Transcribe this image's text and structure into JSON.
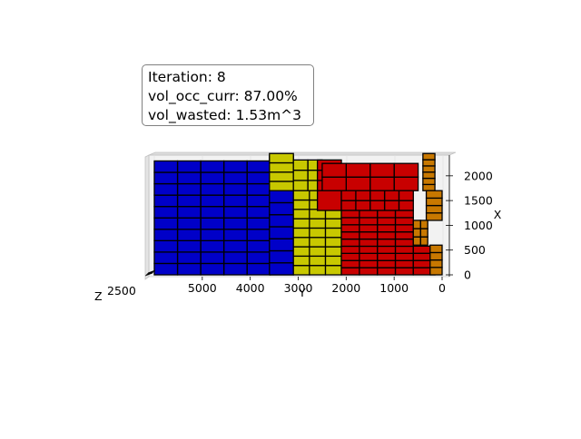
{
  "info": {
    "iteration": "Iteration: 8",
    "vol_occ": "vol_occ_curr: 87.00%",
    "vol_wasted": "vol_wasted: 1.53m^3"
  },
  "chart_data": {
    "type": "3d-bar",
    "title": "",
    "view": "top-down 3D container loading plot",
    "axes": {
      "y": {
        "label": "Y",
        "ticks": [
          "5000",
          "4000",
          "3000",
          "2000",
          "1000",
          "0"
        ],
        "range": [
          0,
          6000
        ]
      },
      "x": {
        "label": "X",
        "ticks": [
          "0",
          "500",
          "1000",
          "1500",
          "2000"
        ],
        "range": [
          0,
          2400
        ]
      },
      "z": {
        "label": "Z",
        "ticks_text": "2500"
      }
    },
    "colors": {
      "blue": "#0000c8",
      "yellow": "#c8c800",
      "red": "#c80000",
      "orange": "#c87800",
      "edge": "#000000"
    },
    "box_groups": [
      {
        "color": "blue",
        "y": [
          3100,
          6000
        ],
        "x": [
          0,
          2300
        ],
        "cols": 6,
        "rows": 10
      },
      {
        "color": "blue",
        "y": [
          3100,
          3600
        ],
        "x": [
          2300,
          2400
        ],
        "cols": 1,
        "rows": 1
      },
      {
        "color": "blue",
        "y": [
          3100,
          3600
        ],
        "x": [
          0,
          1700
        ],
        "cols": 1,
        "rows": 7
      },
      {
        "color": "yellow",
        "y": [
          3100,
          3600
        ],
        "x": [
          1700,
          2450
        ],
        "cols": 1,
        "rows": 4
      },
      {
        "color": "yellow",
        "y": [
          2500,
          3100
        ],
        "x": [
          1700,
          2320
        ],
        "cols": 2,
        "rows": 3
      },
      {
        "color": "yellow",
        "y": [
          2100,
          3100
        ],
        "x": [
          0,
          1700
        ],
        "cols": 3,
        "rows": 9
      },
      {
        "color": "red",
        "y": [
          2100,
          2600
        ],
        "x": [
          1700,
          2320
        ],
        "cols": 1,
        "rows": 3
      },
      {
        "color": "red",
        "y": [
          500,
          2500
        ],
        "x": [
          1700,
          2250
        ],
        "cols": 4,
        "rows": 2
      },
      {
        "color": "red",
        "y": [
          2100,
          2600
        ],
        "x": [
          1300,
          1700
        ],
        "cols": 1,
        "rows": 1
      },
      {
        "color": "red",
        "y": [
          600,
          2100
        ],
        "x": [
          1300,
          1700
        ],
        "cols": 5,
        "rows": 2
      },
      {
        "color": "red",
        "y": [
          600,
          2100
        ],
        "x": [
          0,
          1300
        ],
        "cols": 4,
        "rows": 9
      },
      {
        "color": "red",
        "y": [
          150,
          600
        ],
        "x": [
          0,
          580
        ],
        "cols": 1,
        "rows": 4
      },
      {
        "color": "orange",
        "y": [
          150,
          400
        ],
        "x": [
          1700,
          2450
        ],
        "cols": 1,
        "rows": 6
      },
      {
        "color": "orange",
        "y": [
          0,
          330
        ],
        "x": [
          1100,
          1700
        ],
        "cols": 1,
        "rows": 4
      },
      {
        "color": "orange",
        "y": [
          300,
          600
        ],
        "x": [
          600,
          1100
        ],
        "cols": 2,
        "rows": 3
      },
      {
        "color": "orange",
        "y": [
          0,
          250
        ],
        "x": [
          0,
          600
        ],
        "cols": 1,
        "rows": 4
      }
    ]
  }
}
